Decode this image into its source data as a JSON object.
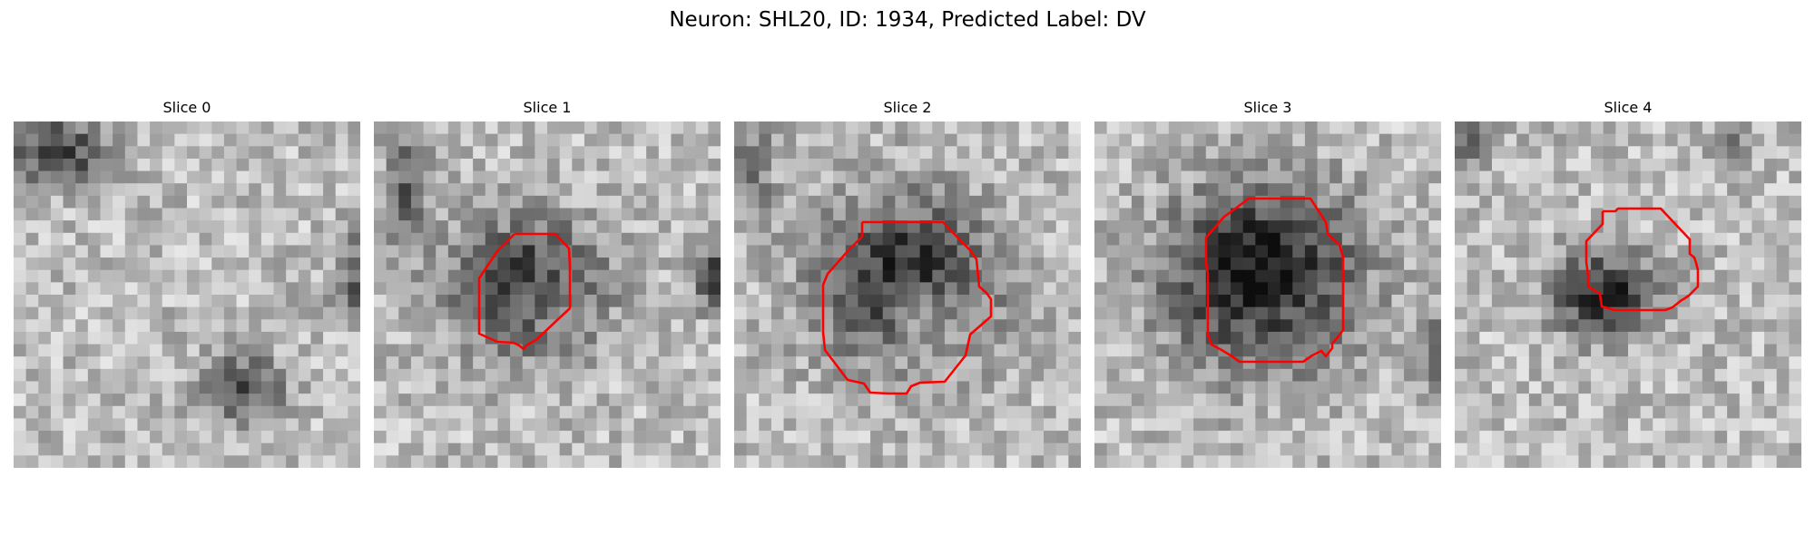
{
  "figure": {
    "title": "Neuron: SHL20, ID: 1934, Predicted Label: DV"
  },
  "colors": {
    "contour": "#ff0000",
    "colormap": "grayscale"
  },
  "panels": [
    {
      "title": "Slice 0"
    },
    {
      "title": "Slice 1"
    },
    {
      "title": "Slice 2"
    },
    {
      "title": "Slice 3"
    },
    {
      "title": "Slice 4"
    }
  ]
}
